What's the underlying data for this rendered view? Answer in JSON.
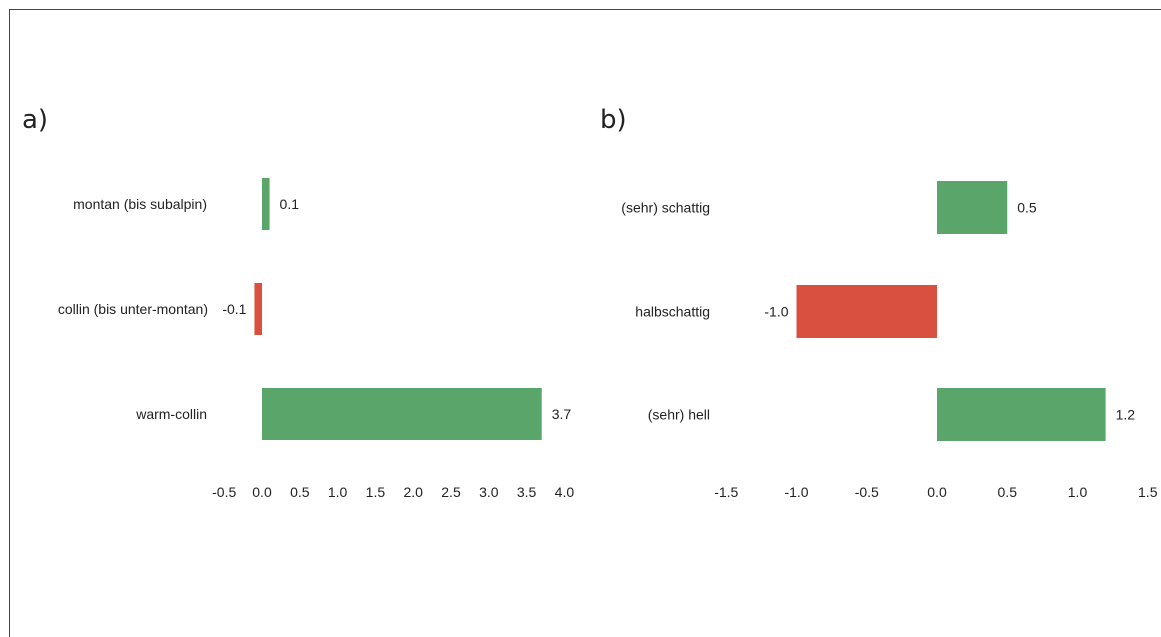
{
  "chart_data": [
    {
      "type": "bar",
      "orientation": "horizontal",
      "panel_label": "a)",
      "categories": [
        "montan (bis subalpin)",
        "collin  (bis unter-montan)",
        "warm-collin"
      ],
      "values": [
        0.1,
        -0.1,
        3.7
      ],
      "data_labels": [
        "0.1",
        "-0.1",
        "3.7"
      ],
      "colors": [
        "#5aa66a",
        "#d9503f",
        "#5aa66a"
      ],
      "xlim": [
        -0.5,
        4.0
      ],
      "xticks": [
        "-0.5",
        "0.0",
        "0.5",
        "1.0",
        "1.5",
        "2.0",
        "2.5",
        "3.0",
        "3.5",
        "4.0"
      ],
      "grid": false
    },
    {
      "type": "bar",
      "orientation": "horizontal",
      "panel_label": "b)",
      "categories": [
        "(sehr) schattig",
        "halbschattig",
        "(sehr) hell"
      ],
      "values": [
        0.5,
        -1.0,
        1.2
      ],
      "data_labels": [
        "0.5",
        "-1.0",
        "1.2"
      ],
      "colors": [
        "#5aa66a",
        "#d9503f",
        "#5aa66a"
      ],
      "xlim": [
        -1.5,
        1.5
      ],
      "xticks": [
        "-1.5",
        "-1.0",
        "-0.5",
        "0.0",
        "0.5",
        "1.0",
        "1.5"
      ],
      "grid": false
    }
  ]
}
